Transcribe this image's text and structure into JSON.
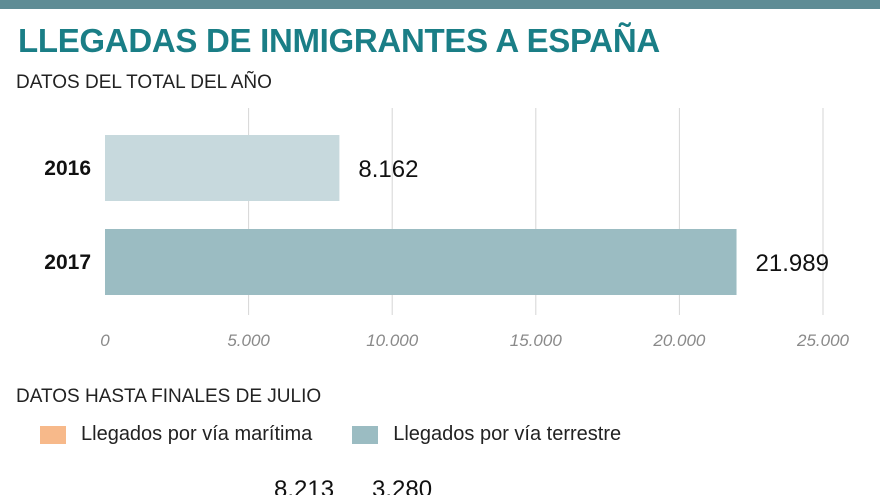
{
  "header": {
    "title": "LLEGADAS DE INMIGRANTES A ESPAÑA",
    "accent_color": "#1a7e86",
    "bar_color": "#5f8c95"
  },
  "section1": {
    "subtitle": "DATOS DEL TOTAL DEL AÑO"
  },
  "chart_data": {
    "type": "bar",
    "orientation": "horizontal",
    "title": "DATOS DEL TOTAL DEL AÑO",
    "categories": [
      "2016",
      "2017"
    ],
    "values": [
      8162,
      21989
    ],
    "value_labels": [
      "8.162",
      "21.989"
    ],
    "bar_colors": [
      "#c7d9dd",
      "#9bbcc2"
    ],
    "xlim": [
      0,
      25000
    ],
    "ticks": [
      0,
      5000,
      10000,
      15000,
      20000,
      25000
    ],
    "tick_labels": [
      "0",
      "5.000",
      "10.000",
      "15.000",
      "20.000",
      "25.000"
    ],
    "grid": true,
    "xlabel": "",
    "ylabel": ""
  },
  "section2": {
    "subtitle": "DATOS HASTA FINALES DE JULIO",
    "legend": [
      {
        "label": "Llegados por vía marítima",
        "color": "#f7b98a"
      },
      {
        "label": "Llegados por vía terrestre",
        "color": "#9bbcc2"
      }
    ],
    "visible_values": [
      "8.213",
      "3.280"
    ]
  }
}
